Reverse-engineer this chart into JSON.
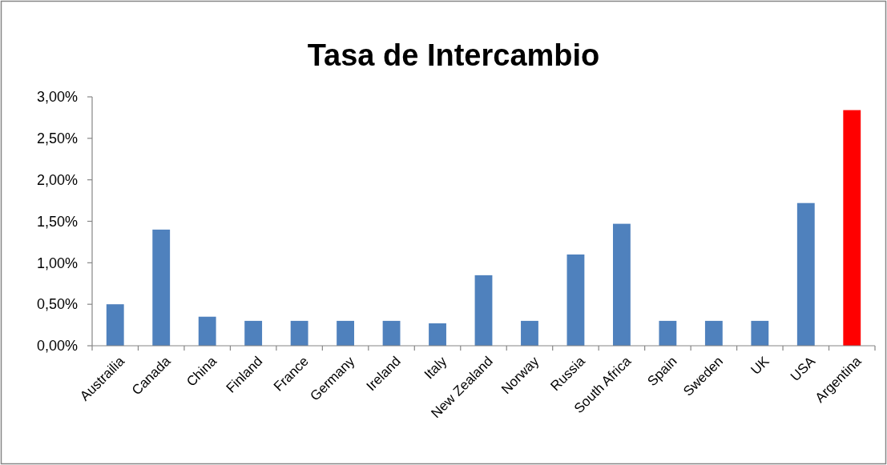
{
  "chart_data": {
    "type": "bar",
    "title": "Tasa de Intercambio",
    "categories": [
      "Austrailia",
      "Canada",
      "China",
      "Finland",
      "France",
      "Germany",
      "Ireland",
      "Italy",
      "New Zealand",
      "Norway",
      "Russia",
      "South Africa",
      "Spain",
      "Sweden",
      "UK",
      "USA",
      "Argentina"
    ],
    "values": [
      0.5,
      1.4,
      0.35,
      0.3,
      0.3,
      0.3,
      0.3,
      0.27,
      0.85,
      0.3,
      1.1,
      1.47,
      0.3,
      0.3,
      0.3,
      1.72,
      2.84
    ],
    "colors": [
      "#4f81bd",
      "#4f81bd",
      "#4f81bd",
      "#4f81bd",
      "#4f81bd",
      "#4f81bd",
      "#4f81bd",
      "#4f81bd",
      "#4f81bd",
      "#4f81bd",
      "#4f81bd",
      "#4f81bd",
      "#4f81bd",
      "#4f81bd",
      "#4f81bd",
      "#4f81bd",
      "#ff0000"
    ],
    "ylim": [
      0,
      3
    ],
    "yticks": [
      {
        "value": 0,
        "label": "0,00%"
      },
      {
        "value": 0.5,
        "label": "0,50%"
      },
      {
        "value": 1,
        "label": "1,00%"
      },
      {
        "value": 1.5,
        "label": "1,50%"
      },
      {
        "value": 2,
        "label": "2,00%"
      },
      {
        "value": 2.5,
        "label": "2,50%"
      },
      {
        "value": 3,
        "label": "3,00%"
      }
    ]
  }
}
